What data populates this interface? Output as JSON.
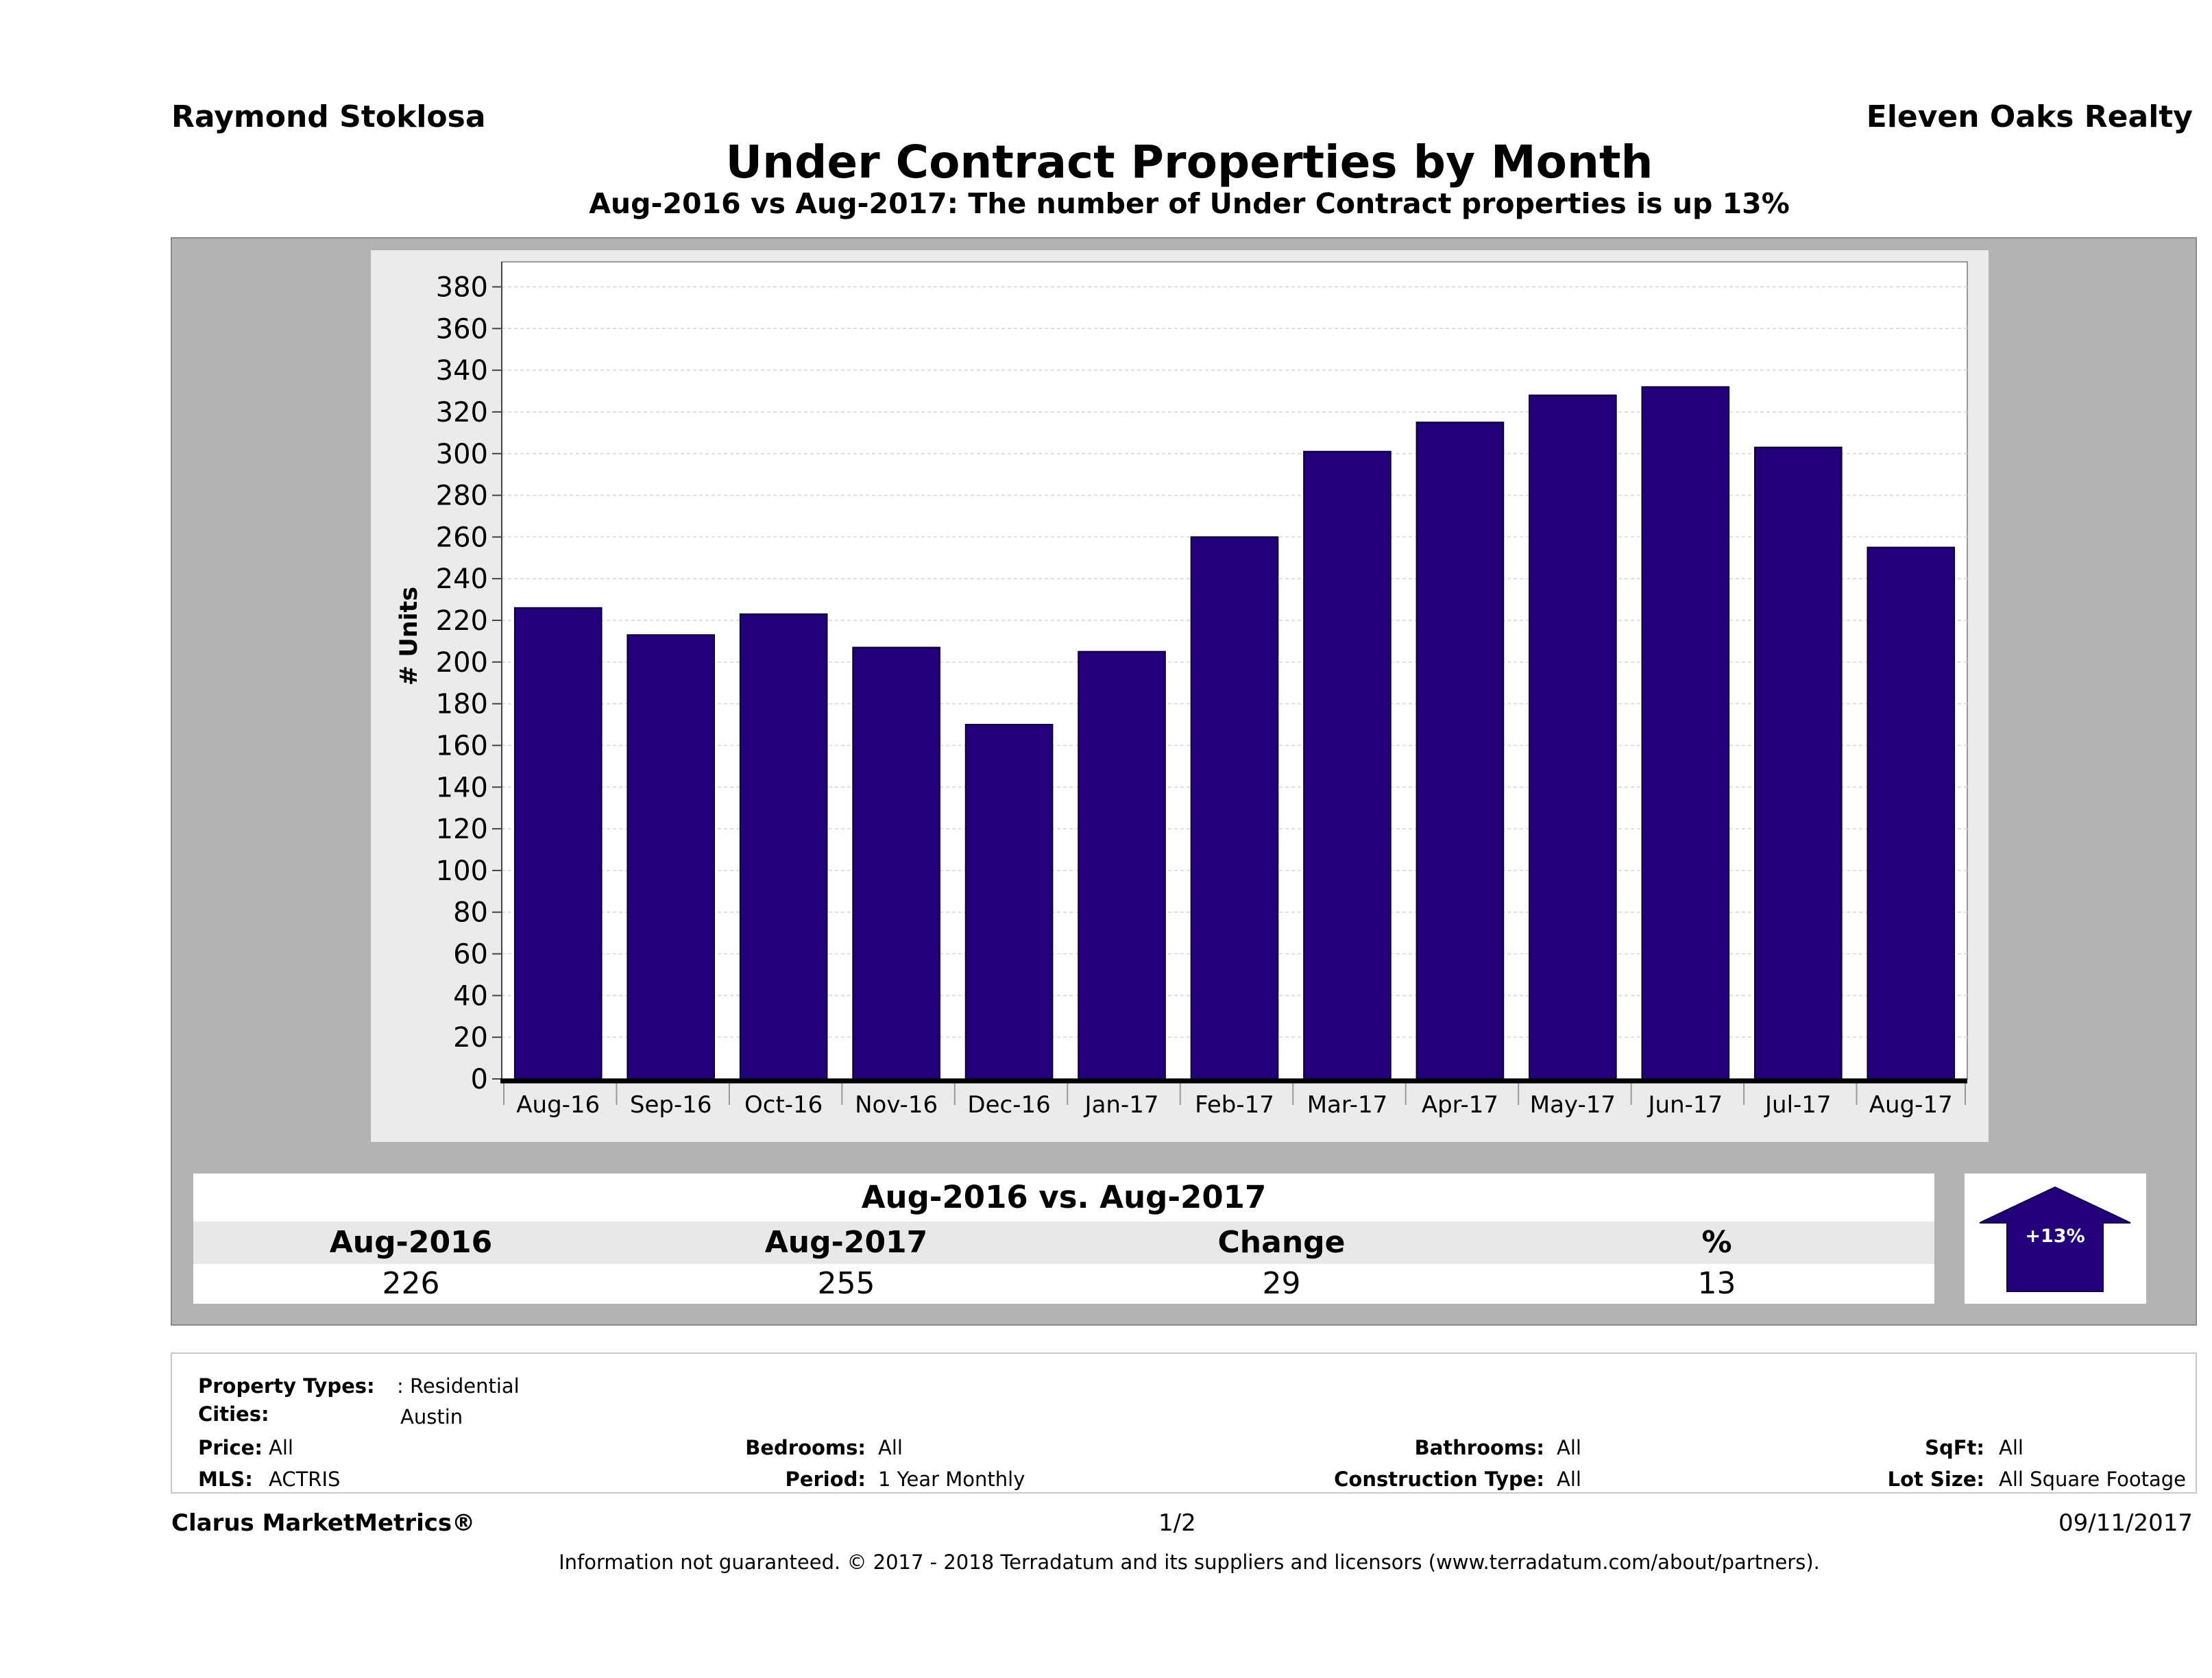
{
  "header": {
    "agent_name": "Raymond Stoklosa",
    "company": "Eleven Oaks Realty",
    "title": "Under Contract Properties by Month",
    "subtitle": "Aug-2016 vs Aug-2017: The number of Under Contract  properties is up 13%"
  },
  "chart_data": {
    "type": "bar",
    "categories": [
      "Aug-16",
      "Sep-16",
      "Oct-16",
      "Nov-16",
      "Dec-16",
      "Jan-17",
      "Feb-17",
      "Mar-17",
      "Apr-17",
      "May-17",
      "Jun-17",
      "Jul-17",
      "Aug-17"
    ],
    "values": [
      226,
      213,
      223,
      207,
      170,
      205,
      260,
      301,
      315,
      328,
      332,
      303,
      255
    ],
    "ylabel": "# Units",
    "xlabel": "",
    "ylim": [
      0,
      380
    ],
    "yticks": [
      0,
      20,
      40,
      60,
      80,
      100,
      120,
      140,
      160,
      180,
      200,
      220,
      240,
      260,
      280,
      300,
      320,
      340,
      360,
      380
    ],
    "bar_color": "#22007a",
    "grid": true
  },
  "summary": {
    "heading": "Aug-2016 vs. Aug-2017",
    "headers": [
      "Aug-2016",
      "Aug-2017",
      "Change",
      "%"
    ],
    "values": [
      "226",
      "255",
      "29",
      "13"
    ],
    "badge": "+13%",
    "badge_color": "#22007a"
  },
  "filters": {
    "property_types_label": "Property Types:",
    "property_types_value": ": Residential",
    "cities_label": "Cities:",
    "cities_value": "Austin",
    "price_label": "Price:",
    "price_value": "All",
    "mls_label": "MLS:",
    "mls_value": "ACTRIS",
    "bedrooms_label": "Bedrooms:",
    "bedrooms_value": "All",
    "period_label": "Period:",
    "period_value": "1 Year Monthly",
    "bathrooms_label": "Bathrooms:",
    "bathrooms_value": "All",
    "construction_label": "Construction Type:",
    "construction_value": "All",
    "sqft_label": "SqFt:",
    "sqft_value": "All",
    "lotsize_label": "Lot Size:",
    "lotsize_value": "All Square Footage"
  },
  "footer": {
    "brand": "Clarus MarketMetrics®",
    "page": "1/2",
    "date": "09/11/2017",
    "disclaimer": "Information not guaranteed. © 2017 - 2018 Terradatum and its suppliers and licensors (www.terradatum.com/about/partners)."
  }
}
